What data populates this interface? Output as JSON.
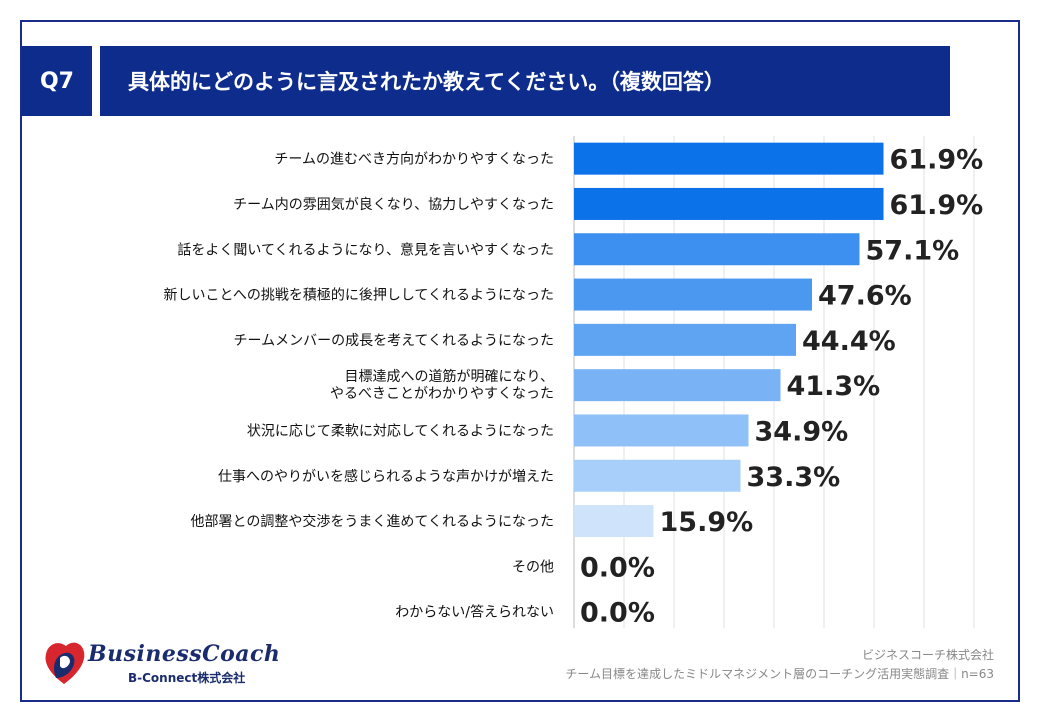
{
  "header": {
    "badge": "Q7",
    "title": "具体的にどのように言及されたか教えてください。（複数回答）"
  },
  "chart_data": {
    "type": "bar",
    "orientation": "horizontal",
    "categories": [
      [
        "チームの進むべき方向がわかりやすくなった"
      ],
      [
        "チーム内の雰囲気が良くなり、協力しやすくなった"
      ],
      [
        "話をよく聞いてくれるようになり、意見を言いやすくなった"
      ],
      [
        "新しいことへの挑戦を積極的に後押ししてくれるようになった"
      ],
      [
        "チームメンバーの成長を考えてくれるようになった"
      ],
      [
        "目標達成への道筋が明確になり、",
        "やるべきことがわかりやすくなった"
      ],
      [
        "状況に応じて柔軟に対応してくれるようになった"
      ],
      [
        "仕事へのやりがいを感じられるような声かけが増えた"
      ],
      [
        "他部署との調整や交渉をうまく進めてくれるようになった"
      ],
      [
        "その他"
      ],
      [
        "わからない/答えられない"
      ]
    ],
    "values": [
      61.9,
      61.9,
      57.1,
      47.6,
      44.4,
      41.3,
      34.9,
      33.3,
      15.9,
      0.0,
      0.0
    ],
    "value_labels": [
      "61.9%",
      "61.9%",
      "57.1%",
      "47.6%",
      "44.4%",
      "41.3%",
      "34.9%",
      "33.3%",
      "15.9%",
      "0.0%",
      "0.0%"
    ],
    "bar_colors": [
      "#0b72ea",
      "#0b72ea",
      "#3d8ff0",
      "#4b98f1",
      "#5fa3f3",
      "#7ab3f5",
      "#8fc0f7",
      "#a8cff9",
      "#cfe3fb",
      "#cfe3fb",
      "#cfe3fb"
    ],
    "xlim": [
      0,
      100
    ],
    "grid": true
  },
  "footer": {
    "logo_name": "BusinessCoach",
    "logo_sub": "B-Connect株式会社",
    "source_company": "ビジネスコーチ株式会社",
    "source_survey": "チーム目標を達成したミドルマネジメント層のコーチング活用実態調査｜n=63"
  }
}
